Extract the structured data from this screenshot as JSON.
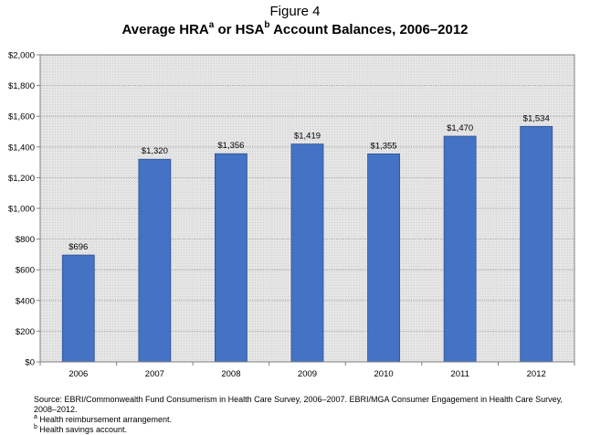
{
  "figure_label": "Figure 4",
  "title_parts": {
    "a": "Average HRA",
    "sup1": "a",
    "b": " or HSA",
    "sup2": "b",
    "c": " Account Balances, 2006–2012"
  },
  "chart_data": {
    "type": "bar",
    "title": "Average HRAa or HSAb Account Balances, 2006–2012",
    "categories": [
      "2006",
      "2007",
      "2008",
      "2009",
      "2010",
      "2011",
      "2012"
    ],
    "values": [
      696,
      1320,
      1356,
      1419,
      1355,
      1470,
      1534
    ],
    "value_labels": [
      "$696",
      "$1,320",
      "$1,356",
      "$1,419",
      "$1,355",
      "$1,470",
      "$1,534"
    ],
    "ylim": [
      0,
      2000
    ],
    "yticks": [
      0,
      200,
      400,
      600,
      800,
      1000,
      1200,
      1400,
      1600,
      1800,
      2000
    ],
    "ytick_labels": [
      "$0",
      "$200",
      "$400",
      "$600",
      "$800",
      "$1,000",
      "$1,200",
      "$1,400",
      "$1,600",
      "$1,800",
      "$2,000"
    ],
    "grid": true,
    "bar_color": "#4472c4",
    "plot_background": "#e6e6e6"
  },
  "notes": {
    "source": "Source: EBRI/Commonwealth Fund Consumerism in Health Care Survey, 2006–2007. EBRI/MGA Consumer Engagement in Health Care Survey, 2008–2012.",
    "footnote_a_marker": "a",
    "footnote_a": " Health reimbursement arrangement.",
    "footnote_b_marker": "b",
    "footnote_b": " Health savings account."
  }
}
